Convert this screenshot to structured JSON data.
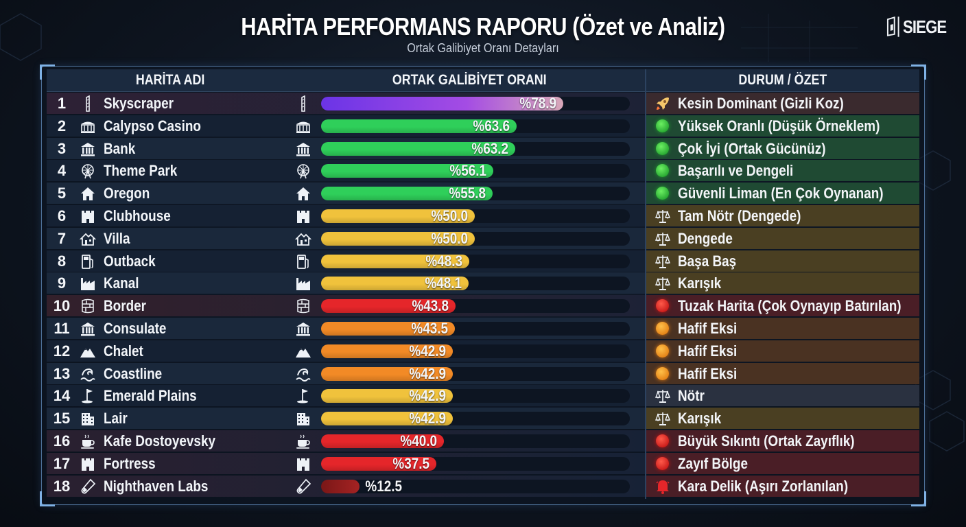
{
  "header": {
    "title": "HARİTA PERFORMANS RAPORU (Özet ve Analiz)",
    "subtitle": "Ortak Galibiyet Oranı Detayları",
    "logo_text": "SIEGE"
  },
  "columns": {
    "map": "HARİTA ADI",
    "rate": "ORTAK GALİBİYET ORANI",
    "status": "DURUM / ÖZET"
  },
  "colors": {
    "purple": "#8f3fe8",
    "green": "#2fcf5a",
    "yellow": "#f0c23c",
    "red": "#e5262a",
    "orange": "#f28a26",
    "darkred": "#9c1c1c"
  },
  "chart_data": {
    "type": "bar",
    "orientation": "horizontal",
    "value_prefix": "%",
    "xlim": [
      0,
      100
    ],
    "rows": [
      {
        "rank": "1",
        "map": "Skyscraper",
        "icon": "skyscraper-icon",
        "value": 78.9,
        "label": "%78.9",
        "bar_color": "purple",
        "status": "Kesin Dominant (Gizli Koz)",
        "status_icon": "rocket-icon",
        "status_tint": "#3a2a2e"
      },
      {
        "rank": "2",
        "map": "Calypso Casino",
        "icon": "casino-icon",
        "value": 63.6,
        "label": "%63.6",
        "bar_color": "green",
        "status": "Yüksek Oranlı (Düşük Örneklem)",
        "status_icon": "green-dot",
        "status_tint": "#1f4a33"
      },
      {
        "rank": "3",
        "map": "Bank",
        "icon": "bank-icon",
        "value": 63.2,
        "label": "%63.2",
        "bar_color": "green",
        "status": "Çok İyi (Ortak Gücünüz)",
        "status_icon": "green-dot",
        "status_tint": "#1f4a33"
      },
      {
        "rank": "4",
        "map": "Theme Park",
        "icon": "ferris-wheel-icon",
        "value": 56.1,
        "label": "%56.1",
        "bar_color": "green",
        "status": "Başarılı ve Dengeli",
        "status_icon": "green-dot",
        "status_tint": "#1f4a33"
      },
      {
        "rank": "5",
        "map": "Oregon",
        "icon": "house-icon",
        "value": 55.8,
        "label": "%55.8",
        "bar_color": "green",
        "status": "Güvenli Liman (En Çok Oynanan)",
        "status_icon": "green-dot",
        "status_tint": "#1f4a33"
      },
      {
        "rank": "6",
        "map": "Clubhouse",
        "icon": "castle-icon",
        "value": 50.0,
        "label": "%50.0",
        "bar_color": "yellow",
        "status": "Tam Nötr (Dengede)",
        "status_icon": "scales-icon",
        "status_tint": "#4a3f22"
      },
      {
        "rank": "7",
        "map": "Villa",
        "icon": "villa-icon",
        "value": 50.0,
        "label": "%50.0",
        "bar_color": "yellow",
        "status": "Dengede",
        "status_icon": "scales-icon",
        "status_tint": "#4a3f22"
      },
      {
        "rank": "8",
        "map": "Outback",
        "icon": "fuel-pump-icon",
        "value": 48.3,
        "label": "%48.3",
        "bar_color": "yellow",
        "status": "Başa Baş",
        "status_icon": "scales-icon",
        "status_tint": "#4a3f22"
      },
      {
        "rank": "9",
        "map": "Kanal",
        "icon": "factory-icon",
        "value": 48.1,
        "label": "%48.1",
        "bar_color": "yellow",
        "status": "Karışık",
        "status_icon": "scales-icon",
        "status_tint": "#4a3f22"
      },
      {
        "rank": "10",
        "map": "Border",
        "icon": "wall-icon",
        "value": 43.8,
        "label": "%43.8",
        "bar_color": "red",
        "status": "Tuzak Harita (Çok Oynayıp Batırılan)",
        "status_icon": "red-dot",
        "status_tint": "#4a1e26"
      },
      {
        "rank": "11",
        "map": "Consulate",
        "icon": "consulate-icon",
        "value": 43.5,
        "label": "%43.5",
        "bar_color": "orange",
        "status": "Hafif Eksi",
        "status_icon": "orange-dot",
        "status_tint": "#4a3222"
      },
      {
        "rank": "12",
        "map": "Chalet",
        "icon": "mountain-icon",
        "value": 42.9,
        "label": "%42.9",
        "bar_color": "orange",
        "status": "Hafif Eksi",
        "status_icon": "orange-dot",
        "status_tint": "#4a3222"
      },
      {
        "rank": "13",
        "map": "Coastline",
        "icon": "wave-icon",
        "value": 42.9,
        "label": "%42.9",
        "bar_color": "orange",
        "status": "Hafif Eksi",
        "status_icon": "orange-dot",
        "status_tint": "#4a3222"
      },
      {
        "rank": "14",
        "map": "Emerald Plains",
        "icon": "golf-flag-icon",
        "value": 42.9,
        "label": "%42.9",
        "bar_color": "yellow",
        "status": "Nötr",
        "status_icon": "scales-icon",
        "status_tint": "#2a3140"
      },
      {
        "rank": "15",
        "map": "Lair",
        "icon": "building-icon",
        "value": 42.9,
        "label": "%42.9",
        "bar_color": "yellow",
        "status": "Karışık",
        "status_icon": "scales-icon",
        "status_tint": "#4a3f22"
      },
      {
        "rank": "16",
        "map": "Kafe Dostoyevsky",
        "icon": "coffee-cup-icon",
        "value": 40.0,
        "label": "%40.0",
        "bar_color": "red",
        "status": "Büyük Sıkıntı (Ortak Zayıflık)",
        "status_icon": "red-dot",
        "status_tint": "#4a1e26"
      },
      {
        "rank": "17",
        "map": "Fortress",
        "icon": "fortress-icon",
        "value": 37.5,
        "label": "%37.5",
        "bar_color": "red",
        "status": "Zayıf Bölge",
        "status_icon": "red-dot",
        "status_tint": "#4a1e26"
      },
      {
        "rank": "18",
        "map": "Nighthaven Labs",
        "icon": "test-tube-icon",
        "value": 12.5,
        "label": "%12.5",
        "bar_color": "darkred",
        "status": "Kara Delik (Aşırı Zorlanılan)",
        "status_icon": "alarm-bell-icon",
        "status_tint": "#4a1e26"
      }
    ]
  }
}
